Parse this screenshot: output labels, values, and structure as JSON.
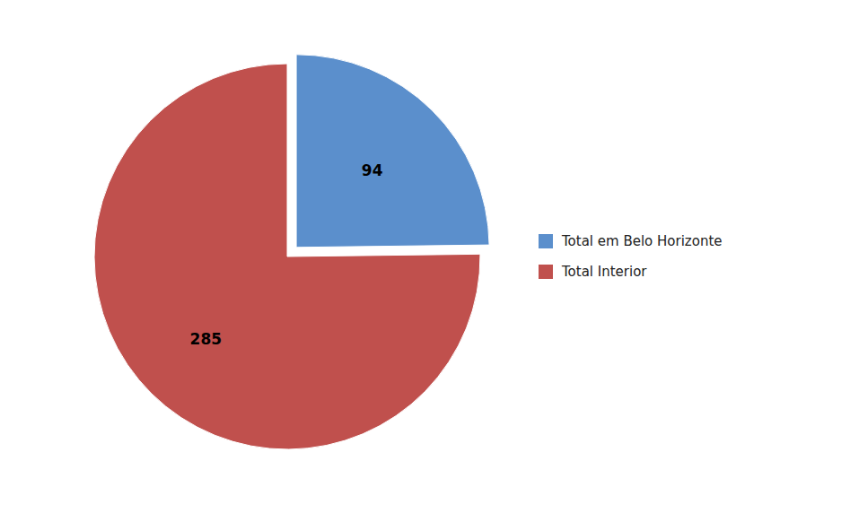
{
  "chart_data": {
    "type": "pie",
    "categories": [
      "Total em Belo Horizonte",
      "Total Interior"
    ],
    "values": [
      94,
      285
    ],
    "colors": [
      "#5B8FCC",
      "#C0504D"
    ],
    "data_labels": true,
    "legend": "right"
  }
}
